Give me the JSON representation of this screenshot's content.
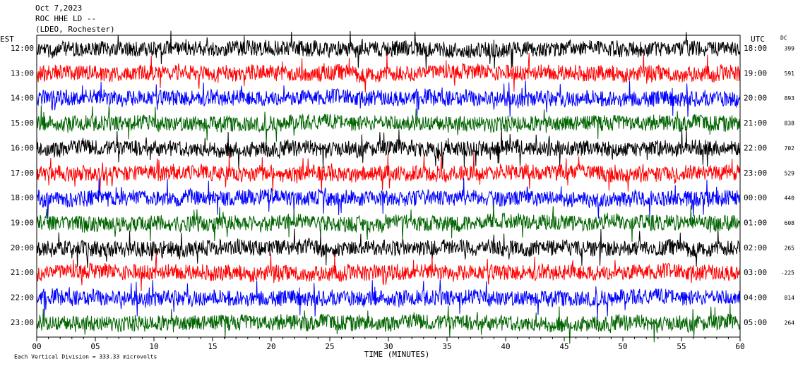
{
  "header": {
    "lines": [
      "Oct 7,2023",
      "ROC HHE LD --",
      "(LDEO, Rochester)"
    ]
  },
  "left_label": "EST",
  "right_label": "UTC",
  "dc_label": "DC",
  "rows": [
    {
      "est": "12:00",
      "utc": "18:00",
      "dc": 399
    },
    {
      "est": "13:00",
      "utc": "19:00",
      "dc": 591
    },
    {
      "est": "14:00",
      "utc": "20:00",
      "dc": 893
    },
    {
      "est": "15:00",
      "utc": "21:00",
      "dc": 838
    },
    {
      "est": "16:00",
      "utc": "22:00",
      "dc": 702
    },
    {
      "est": "17:00",
      "utc": "23:00",
      "dc": 529
    },
    {
      "est": "18:00",
      "utc": "00:00",
      "dc": 440
    },
    {
      "est": "19:00",
      "utc": "01:00",
      "dc": 608
    },
    {
      "est": "20:00",
      "utc": "02:00",
      "dc": 265
    },
    {
      "est": "21:00",
      "utc": "03:00",
      "dc": -225
    },
    {
      "est": "22:00",
      "utc": "04:00",
      "dc": 814
    },
    {
      "est": "23:00",
      "utc": "05:00",
      "dc": 264
    }
  ],
  "trace_colors": [
    "#000000",
    "#ff0000",
    "#0000ff",
    "#006400"
  ],
  "x_axis": {
    "ticks": [
      "00",
      "05",
      "10",
      "15",
      "20",
      "25",
      "30",
      "35",
      "40",
      "45",
      "50",
      "55",
      "60"
    ],
    "title": "TIME (MINUTES)"
  },
  "footer": "Each Vertical Division =  333.33 microvolts"
}
